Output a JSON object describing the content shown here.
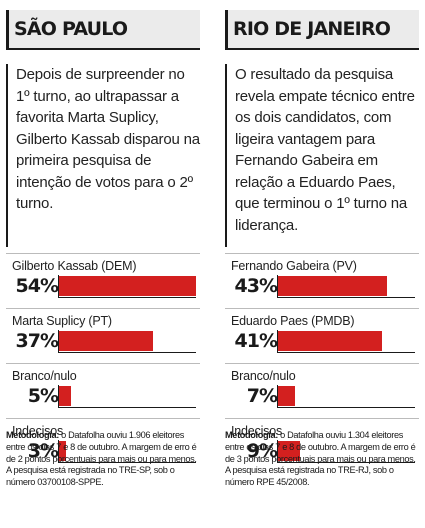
{
  "columns": [
    {
      "title": "SÃO PAULO",
      "intro": "Depois de surpreender no 1º turno, ao ultrapassar a favorita Marta Suplicy, Gilberto Kassab disparou na primeira pesquisa de intenção de votos para o 2º turno.",
      "method_label": "Metodologia:",
      "method_text": " o Datafolha ouviu 1.906 eleitores entre os dias 7 e 8 de outubro. A margem de erro é de 2 pontos porcentuais para mais ou para menos. A pesquisa está registrada no TRE-SP, sob o número 03700108-SPPE."
    },
    {
      "title": "RIO DE JANEIRO",
      "intro": "O resultado da pesquisa revela empate técnico entre os dois candidatos, com ligeira vantagem para Fernando Gabeira em relação a Eduardo Paes, que terminou o 1º turno na liderança.",
      "method_label": "Metodologia:",
      "method_text": " o Datafolha ouviu 1.304 eleitores entre os dias 7 e 8 de outubro. A margem de erro é de 3 pontos porcentuais para mais ou para menos. A pesquisa está registrada no TRE-RJ, sob o número RPE 45/2008."
    }
  ],
  "colors": {
    "bar": "#d3201f",
    "header_bg": "#ebebeb"
  },
  "chart_data": [
    {
      "type": "bar",
      "title": "SÃO PAULO",
      "categories": [
        "Gilberto Kassab (DEM)",
        "Marta Suplicy (PT)",
        "Branco/nulo",
        "Indecisos"
      ],
      "values": [
        54,
        37,
        5,
        3
      ],
      "labels": [
        "54%",
        "37%",
        "5%",
        "3%"
      ],
      "ylim": [
        0,
        54
      ]
    },
    {
      "type": "bar",
      "title": "RIO DE JANEIRO",
      "categories": [
        "Fernando Gabeira (PV)",
        "Eduardo Paes (PMDB)",
        "Branco/nulo",
        "Indecisos"
      ],
      "values": [
        43,
        41,
        7,
        9
      ],
      "labels": [
        "43%",
        "41%",
        "7%",
        "9%"
      ],
      "ylim": [
        0,
        54
      ]
    }
  ]
}
